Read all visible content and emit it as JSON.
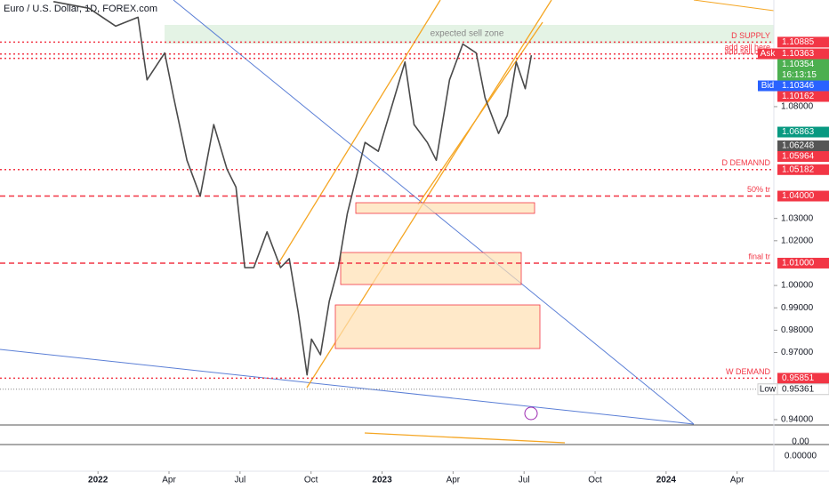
{
  "chart_data": {
    "type": "line",
    "title": "Euro / U.S. Dollar, 1D, FOREX.com",
    "color": "#4a4a4a",
    "x": [
      -1.88,
      -0.38,
      0.75,
      1.69,
      2.07,
      2.82,
      3.2,
      3.76,
      4.32,
      4.89,
      5.45,
      5.83,
      6.2,
      6.58,
      7.14,
      7.71,
      8.08,
      8.46,
      8.83,
      9.02,
      9.4,
      9.77,
      10.15,
      10.53,
      10.9,
      11.28,
      11.84,
      12.41,
      12.97,
      13.35,
      13.91,
      14.29,
      14.85,
      15.41,
      15.98,
      16.35,
      16.92,
      17.29,
      17.67,
      18.05,
      18.31
    ],
    "values": [
      1.127,
      1.124,
      1.116,
      1.12,
      1.092,
      1.104,
      1.084,
      1.056,
      1.04,
      1.072,
      1.052,
      1.044,
      1.008,
      1.008,
      1.024,
      1.008,
      1.012,
      0.988,
      0.96,
      0.976,
      0.969,
      0.993,
      1.008,
      1.032,
      1.048,
      1.064,
      1.06,
      1.08,
      1.1,
      1.072,
      1.064,
      1.056,
      1.092,
      1.108,
      1.104,
      1.084,
      1.068,
      1.076,
      1.1,
      1.088,
      1.103
    ],
    "xlim": [
      -4.14,
      27.8
    ],
    "ylim": [
      0.9376,
      1.1277
    ],
    "xticks": [
      {
        "value": 0,
        "label": "2022"
      },
      {
        "value": 3,
        "label": "Apr"
      },
      {
        "value": 6,
        "label": "Jul"
      },
      {
        "value": 9,
        "label": "Oct"
      },
      {
        "value": 12,
        "label": "2023"
      },
      {
        "value": 15,
        "label": "Apr"
      },
      {
        "value": 18,
        "label": "Jul"
      },
      {
        "value": 21,
        "label": "Oct"
      },
      {
        "value": 24,
        "label": "2024"
      },
      {
        "value": 27,
        "label": "Apr"
      }
    ],
    "yticks": [
      {
        "value": 1.08,
        "label": "1.08000"
      },
      {
        "value": 1.03,
        "label": "1.03000"
      },
      {
        "value": 1.02,
        "label": "1.02000"
      },
      {
        "value": 1.0,
        "label": "1.00000"
      },
      {
        "value": 0.99,
        "label": "0.99000"
      },
      {
        "value": 0.98,
        "label": "0.98000"
      },
      {
        "value": 0.97,
        "label": "0.97000"
      },
      {
        "value": 0.94,
        "label": "0.94000"
      }
    ],
    "zone_label": "expected sell zone",
    "levels": [
      {
        "name": "D SUPPLY",
        "value": 1.10885,
        "style": "dotted"
      },
      {
        "name": "add sell here",
        "value": 1.10354,
        "style": "dotted"
      },
      {
        "name": "add sell here",
        "value": 1.10162,
        "style": "dotted"
      },
      {
        "name": "D DEMANND",
        "value": 1.05182,
        "style": "dotted"
      },
      {
        "name": "50% tr",
        "value": 1.04,
        "style": "dashed"
      },
      {
        "name": "final tr",
        "value": 1.01,
        "style": "dashed"
      },
      {
        "name": "W DEMAND",
        "value": 0.95851,
        "style": "dotted"
      }
    ],
    "badges": [
      {
        "value": 1.10885,
        "color": "#f23645"
      },
      {
        "tag": "Ask",
        "value": 1.10363,
        "color": "#f23645"
      },
      {
        "value": 1.10354,
        "color": "#4caf50",
        "time": "16:13:15"
      },
      {
        "tag": "Bid",
        "value": 1.10346,
        "color": "#2962ff"
      },
      {
        "value": 1.10162,
        "color": "#f23645"
      },
      {
        "value": 1.06863,
        "color": "#089981"
      },
      {
        "value": 1.06248,
        "color": "#555555"
      },
      {
        "value": 1.05964,
        "color": "#f23645"
      },
      {
        "value": 1.05182,
        "color": "#f23645"
      },
      {
        "value": 1.04,
        "label": "1.04000",
        "color": "#f23645"
      },
      {
        "value": 1.01,
        "label": "1.01000",
        "color": "#f23645"
      },
      {
        "value": 0.95851,
        "color": "#f23645"
      },
      {
        "tag": "Low",
        "value": 0.95361,
        "color": "#ffffff"
      }
    ],
    "pane_labels": [
      "0.00",
      "0.00000"
    ]
  }
}
